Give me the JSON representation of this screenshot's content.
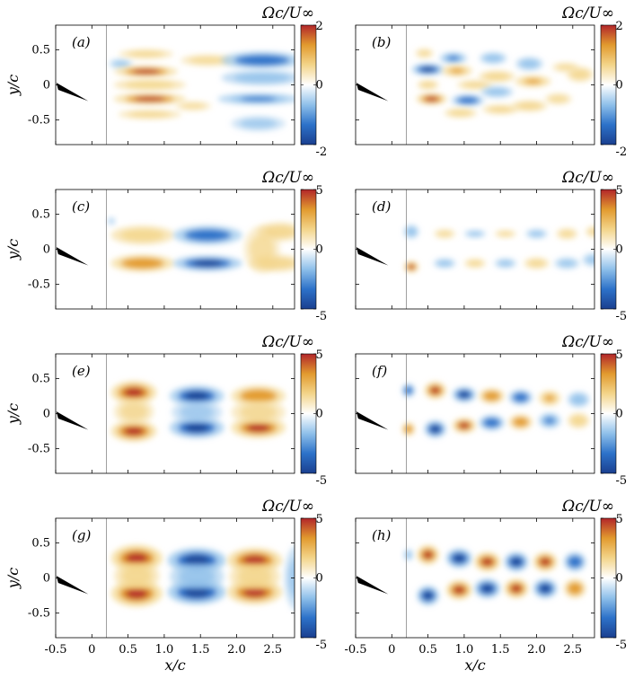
{
  "figure": {
    "x_axis_label": "x/c",
    "y_axis_label": "y/c",
    "colorbar_title": "Ωc/U∞",
    "colormap": [
      "#1a3f8f",
      "#2d72c9",
      "#8fc0ea",
      "#ffffff",
      "#f3d58a",
      "#e29a2e",
      "#b2262a"
    ]
  },
  "chart_data": [
    {
      "type": "heatmap",
      "panel": "(a)",
      "xlim": [
        -0.5,
        2.8
      ],
      "ylim": [
        -0.85,
        0.85
      ],
      "xticks": [
        "-0.5",
        "0",
        "0.5",
        "1.0",
        "1.5",
        "2.0",
        "2.5"
      ],
      "yticks": [
        "0.5",
        "0",
        "-0.5"
      ],
      "colorbar": {
        "min": -2,
        "max": 2,
        "ticks": [
          "2",
          "0",
          "-2"
        ]
      },
      "vortices": [
        {
          "x": 0.4,
          "y": 0.3,
          "a": 0.13,
          "b": 0.05,
          "v": -0.6
        },
        {
          "x": 0.75,
          "y": 0.44,
          "a": 0.3,
          "b": 0.05,
          "v": 0.9
        },
        {
          "x": 0.75,
          "y": 0.19,
          "a": 0.35,
          "b": 0.06,
          "v": 1.6
        },
        {
          "x": 0.8,
          "y": 0.0,
          "a": 0.4,
          "b": 0.06,
          "v": 1.1
        },
        {
          "x": 0.8,
          "y": -0.2,
          "a": 0.4,
          "b": 0.06,
          "v": 1.6
        },
        {
          "x": 0.8,
          "y": -0.42,
          "a": 0.35,
          "b": 0.05,
          "v": 0.9
        },
        {
          "x": 1.6,
          "y": 0.35,
          "a": 0.3,
          "b": 0.06,
          "v": 0.7
        },
        {
          "x": 2.35,
          "y": 0.35,
          "a": 0.45,
          "b": 0.09,
          "v": -1.5
        },
        {
          "x": 2.35,
          "y": 0.1,
          "a": 0.45,
          "b": 0.08,
          "v": -1.0
        },
        {
          "x": 2.3,
          "y": -0.2,
          "a": 0.45,
          "b": 0.06,
          "v": -1.3
        },
        {
          "x": 2.3,
          "y": -0.55,
          "a": 0.3,
          "b": 0.08,
          "v": -0.3
        },
        {
          "x": 1.4,
          "y": -0.3,
          "a": 0.2,
          "b": 0.05,
          "v": 0.4
        }
      ]
    },
    {
      "type": "heatmap",
      "panel": "(b)",
      "xlim": [
        -0.5,
        2.8
      ],
      "ylim": [
        -0.85,
        0.85
      ],
      "xticks": [
        "-0.5",
        "0",
        "0.5",
        "1.0",
        "1.5",
        "2.0",
        "2.5"
      ],
      "yticks": [
        "0.5",
        "0",
        "-0.5"
      ],
      "colorbar": {
        "min": -2,
        "max": 2,
        "ticks": [
          "2",
          "0",
          "-2"
        ]
      },
      "vortices": [
        {
          "x": 0.45,
          "y": 0.45,
          "a": 0.1,
          "b": 0.05,
          "v": 0.7
        },
        {
          "x": 0.85,
          "y": 0.38,
          "a": 0.15,
          "b": 0.06,
          "v": -1.3
        },
        {
          "x": 0.5,
          "y": 0.22,
          "a": 0.18,
          "b": 0.06,
          "v": -1.7
        },
        {
          "x": 0.9,
          "y": 0.2,
          "a": 0.17,
          "b": 0.06,
          "v": 1.3
        },
        {
          "x": 0.5,
          "y": 0.0,
          "a": 0.12,
          "b": 0.05,
          "v": 1.0
        },
        {
          "x": 1.15,
          "y": 0.0,
          "a": 0.2,
          "b": 0.05,
          "v": 0.9
        },
        {
          "x": 0.55,
          "y": -0.2,
          "a": 0.17,
          "b": 0.06,
          "v": 1.6
        },
        {
          "x": 1.05,
          "y": -0.22,
          "a": 0.18,
          "b": 0.06,
          "v": -1.4
        },
        {
          "x": 1.4,
          "y": 0.38,
          "a": 0.15,
          "b": 0.06,
          "v": -1.1
        },
        {
          "x": 1.45,
          "y": 0.12,
          "a": 0.2,
          "b": 0.06,
          "v": 1.2
        },
        {
          "x": 1.45,
          "y": -0.1,
          "a": 0.18,
          "b": 0.06,
          "v": -1.0
        },
        {
          "x": 1.5,
          "y": -0.35,
          "a": 0.2,
          "b": 0.05,
          "v": 1.0
        },
        {
          "x": 0.95,
          "y": -0.4,
          "a": 0.18,
          "b": 0.05,
          "v": 1.1
        },
        {
          "x": 1.9,
          "y": 0.3,
          "a": 0.15,
          "b": 0.07,
          "v": -1.0
        },
        {
          "x": 1.95,
          "y": 0.05,
          "a": 0.2,
          "b": 0.06,
          "v": 1.3
        },
        {
          "x": 1.9,
          "y": -0.3,
          "a": 0.2,
          "b": 0.06,
          "v": 1.0
        },
        {
          "x": 2.4,
          "y": 0.25,
          "a": 0.15,
          "b": 0.05,
          "v": 0.6
        },
        {
          "x": 2.6,
          "y": 0.15,
          "a": 0.15,
          "b": 0.08,
          "v": 0.9
        },
        {
          "x": 2.3,
          "y": -0.2,
          "a": 0.15,
          "b": 0.06,
          "v": 0.6
        }
      ]
    },
    {
      "type": "heatmap",
      "panel": "(c)",
      "xlim": [
        -0.5,
        2.8
      ],
      "ylim": [
        -0.85,
        0.85
      ],
      "xticks": [
        "-0.5",
        "0",
        "0.5",
        "1.0",
        "1.5",
        "2.0",
        "2.5"
      ],
      "yticks": [
        "0.5",
        "0",
        "-0.5"
      ],
      "colorbar": {
        "min": -5,
        "max": 5,
        "ticks": [
          "5",
          "0",
          "-5"
        ]
      },
      "vortices": [
        {
          "x": 0.7,
          "y": 0.2,
          "a": 0.35,
          "b": 0.1,
          "v": 2.8
        },
        {
          "x": 0.7,
          "y": -0.2,
          "a": 0.35,
          "b": 0.09,
          "v": 3.8
        },
        {
          "x": 1.6,
          "y": 0.2,
          "a": 0.38,
          "b": 0.1,
          "v": -3.8
        },
        {
          "x": 1.6,
          "y": -0.2,
          "a": 0.38,
          "b": 0.08,
          "v": -4.5
        },
        {
          "x": 2.6,
          "y": 0.25,
          "a": 0.25,
          "b": 0.1,
          "v": 2.5
        },
        {
          "x": 2.55,
          "y": -0.2,
          "a": 0.3,
          "b": 0.09,
          "v": 2.5
        },
        {
          "x": 2.35,
          "y": 0.0,
          "a": 0.2,
          "b": 0.25,
          "v": 0.6
        },
        {
          "x": 0.27,
          "y": 0.4,
          "a": 0.04,
          "b": 0.04,
          "v": -1.0
        }
      ]
    },
    {
      "type": "heatmap",
      "panel": "(d)",
      "xlim": [
        -0.5,
        2.8
      ],
      "ylim": [
        -0.85,
        0.85
      ],
      "xticks": [
        "-0.5",
        "0",
        "0.5",
        "1.0",
        "1.5",
        "2.0",
        "2.5"
      ],
      "yticks": [
        "0.5",
        "0",
        "-0.5"
      ],
      "colorbar": {
        "min": -5,
        "max": 5,
        "ticks": [
          "5",
          "0",
          "-5"
        ]
      },
      "vortices": [
        {
          "x": 0.27,
          "y": 0.25,
          "a": 0.08,
          "b": 0.07,
          "v": -3.0
        },
        {
          "x": 0.27,
          "y": -0.25,
          "a": 0.08,
          "b": 0.06,
          "v": 4.0
        },
        {
          "x": 0.73,
          "y": 0.22,
          "a": 0.12,
          "b": 0.05,
          "v": 1.5
        },
        {
          "x": 0.73,
          "y": -0.2,
          "a": 0.12,
          "b": 0.05,
          "v": -2.5
        },
        {
          "x": 1.15,
          "y": 0.22,
          "a": 0.12,
          "b": 0.04,
          "v": -1.8
        },
        {
          "x": 1.15,
          "y": -0.2,
          "a": 0.12,
          "b": 0.05,
          "v": 2.0
        },
        {
          "x": 1.57,
          "y": 0.22,
          "a": 0.12,
          "b": 0.04,
          "v": 1.8
        },
        {
          "x": 1.57,
          "y": -0.2,
          "a": 0.12,
          "b": 0.05,
          "v": -2.0
        },
        {
          "x": 2.0,
          "y": 0.22,
          "a": 0.12,
          "b": 0.05,
          "v": -1.8
        },
        {
          "x": 2.0,
          "y": -0.2,
          "a": 0.14,
          "b": 0.06,
          "v": 2.2
        },
        {
          "x": 2.42,
          "y": 0.22,
          "a": 0.12,
          "b": 0.06,
          "v": 1.8
        },
        {
          "x": 2.42,
          "y": -0.2,
          "a": 0.14,
          "b": 0.06,
          "v": -1.5
        },
        {
          "x": 2.8,
          "y": 0.25,
          "a": 0.1,
          "b": 0.06,
          "v": 1.6
        },
        {
          "x": 2.78,
          "y": -0.15,
          "a": 0.12,
          "b": 0.07,
          "v": -1.2
        }
      ]
    },
    {
      "type": "heatmap",
      "panel": "(e)",
      "xlim": [
        -0.5,
        2.8
      ],
      "ylim": [
        -0.85,
        0.85
      ],
      "xticks": [
        "-0.5",
        "0",
        "0.5",
        "1.0",
        "1.5",
        "2.0",
        "2.5"
      ],
      "yticks": [
        "0.5",
        "0",
        "-0.5"
      ],
      "colorbar": {
        "min": -5,
        "max": 5,
        "ticks": [
          "5",
          "0",
          "-5"
        ]
      },
      "vortices": [
        {
          "x": 0.58,
          "y": 0.3,
          "a": 0.25,
          "b": 0.12,
          "v": 4.8
        },
        {
          "x": 0.58,
          "y": -0.25,
          "a": 0.25,
          "b": 0.11,
          "v": 4.8
        },
        {
          "x": 0.58,
          "y": 0.03,
          "a": 0.22,
          "b": 0.14,
          "v": 1.6
        },
        {
          "x": 1.45,
          "y": 0.25,
          "a": 0.3,
          "b": 0.11,
          "v": -4.2
        },
        {
          "x": 1.45,
          "y": -0.2,
          "a": 0.3,
          "b": 0.11,
          "v": -4.5
        },
        {
          "x": 1.45,
          "y": 0.02,
          "a": 0.28,
          "b": 0.12,
          "v": -1.0
        },
        {
          "x": 2.3,
          "y": 0.25,
          "a": 0.3,
          "b": 0.11,
          "v": 3.8
        },
        {
          "x": 2.3,
          "y": -0.2,
          "a": 0.3,
          "b": 0.11,
          "v": 4.2
        },
        {
          "x": 2.3,
          "y": 0.02,
          "a": 0.3,
          "b": 0.13,
          "v": 1.6
        }
      ]
    },
    {
      "type": "heatmap",
      "panel": "(f)",
      "xlim": [
        -0.5,
        2.8
      ],
      "ylim": [
        -0.85,
        0.85
      ],
      "xticks": [
        "-0.5",
        "0",
        "0.5",
        "1.0",
        "1.5",
        "2.0",
        "2.5"
      ],
      "yticks": [
        "0.5",
        "0",
        "-0.5"
      ],
      "colorbar": {
        "min": -5,
        "max": 5,
        "ticks": [
          "5",
          "0",
          "-5"
        ]
      },
      "vortices": [
        {
          "x": 0.23,
          "y": 0.33,
          "a": 0.07,
          "b": 0.07,
          "v": -3.6
        },
        {
          "x": 0.23,
          "y": -0.22,
          "a": 0.07,
          "b": 0.07,
          "v": 3.6
        },
        {
          "x": 0.6,
          "y": 0.33,
          "a": 0.12,
          "b": 0.09,
          "v": 4.2
        },
        {
          "x": 0.6,
          "y": -0.22,
          "a": 0.12,
          "b": 0.09,
          "v": -4.2
        },
        {
          "x": 1.0,
          "y": 0.27,
          "a": 0.13,
          "b": 0.08,
          "v": -4.0
        },
        {
          "x": 1.0,
          "y": -0.17,
          "a": 0.13,
          "b": 0.08,
          "v": 4.0
        },
        {
          "x": 1.38,
          "y": 0.25,
          "a": 0.14,
          "b": 0.08,
          "v": 3.6
        },
        {
          "x": 1.38,
          "y": -0.13,
          "a": 0.14,
          "b": 0.08,
          "v": -3.6
        },
        {
          "x": 1.78,
          "y": 0.23,
          "a": 0.13,
          "b": 0.08,
          "v": -3.4
        },
        {
          "x": 1.78,
          "y": -0.12,
          "a": 0.13,
          "b": 0.08,
          "v": 3.4
        },
        {
          "x": 2.18,
          "y": 0.22,
          "a": 0.12,
          "b": 0.08,
          "v": 3.2
        },
        {
          "x": 2.18,
          "y": -0.1,
          "a": 0.12,
          "b": 0.08,
          "v": -3.2
        },
        {
          "x": 2.58,
          "y": 0.2,
          "a": 0.12,
          "b": 0.08,
          "v": -3.0
        },
        {
          "x": 2.58,
          "y": -0.1,
          "a": 0.12,
          "b": 0.08,
          "v": 3.0
        }
      ]
    },
    {
      "type": "heatmap",
      "panel": "(g)",
      "xlim": [
        -0.5,
        2.8
      ],
      "ylim": [
        -0.85,
        0.85
      ],
      "xticks": [
        "-0.5",
        "0",
        "0.5",
        "1.0",
        "1.5",
        "2.0",
        "2.5"
      ],
      "yticks": [
        "0.5",
        "0",
        "-0.5"
      ],
      "colorbar": {
        "min": -5,
        "max": 5,
        "ticks": [
          "5",
          "0",
          "-5"
        ]
      },
      "vortices": [
        {
          "x": 0.62,
          "y": 0.28,
          "a": 0.28,
          "b": 0.14,
          "v": 5.2
        },
        {
          "x": 0.62,
          "y": -0.22,
          "a": 0.28,
          "b": 0.14,
          "v": 5.2
        },
        {
          "x": 0.62,
          "y": 0.03,
          "a": 0.25,
          "b": 0.15,
          "v": 2.2
        },
        {
          "x": 1.45,
          "y": 0.25,
          "a": 0.32,
          "b": 0.13,
          "v": -5.2
        },
        {
          "x": 1.45,
          "y": -0.2,
          "a": 0.32,
          "b": 0.13,
          "v": -5.2
        },
        {
          "x": 1.45,
          "y": 0.02,
          "a": 0.3,
          "b": 0.15,
          "v": -2.0
        },
        {
          "x": 2.25,
          "y": 0.25,
          "a": 0.3,
          "b": 0.13,
          "v": 4.8
        },
        {
          "x": 2.25,
          "y": -0.2,
          "a": 0.3,
          "b": 0.13,
          "v": 4.8
        },
        {
          "x": 2.25,
          "y": 0.02,
          "a": 0.28,
          "b": 0.15,
          "v": 2.2
        },
        {
          "x": 2.85,
          "y": 0.0,
          "a": 0.15,
          "b": 0.35,
          "v": -1.8
        }
      ]
    },
    {
      "type": "heatmap",
      "panel": "(h)",
      "xlim": [
        -0.5,
        2.8
      ],
      "ylim": [
        -0.85,
        0.85
      ],
      "xticks": [
        "-0.5",
        "0",
        "0.5",
        "1.0",
        "1.5",
        "2.0",
        "2.5"
      ],
      "yticks": [
        "0.5",
        "0",
        "-0.5"
      ],
      "colorbar": {
        "min": -5,
        "max": 5,
        "ticks": [
          "5",
          "0",
          "-5"
        ]
      },
      "vortices": [
        {
          "x": 0.23,
          "y": 0.33,
          "a": 0.05,
          "b": 0.06,
          "v": -2.4
        },
        {
          "x": 0.5,
          "y": 0.33,
          "a": 0.12,
          "b": 0.1,
          "v": 5.0
        },
        {
          "x": 0.5,
          "y": -0.25,
          "a": 0.12,
          "b": 0.1,
          "v": -5.0
        },
        {
          "x": 0.93,
          "y": 0.28,
          "a": 0.14,
          "b": 0.1,
          "v": -5.0
        },
        {
          "x": 0.93,
          "y": -0.17,
          "a": 0.14,
          "b": 0.1,
          "v": 5.0
        },
        {
          "x": 1.32,
          "y": 0.23,
          "a": 0.14,
          "b": 0.1,
          "v": 5.0
        },
        {
          "x": 1.32,
          "y": -0.15,
          "a": 0.14,
          "b": 0.1,
          "v": -5.0
        },
        {
          "x": 1.72,
          "y": 0.23,
          "a": 0.13,
          "b": 0.1,
          "v": -5.0
        },
        {
          "x": 1.72,
          "y": -0.15,
          "a": 0.13,
          "b": 0.1,
          "v": 5.0
        },
        {
          "x": 2.12,
          "y": 0.23,
          "a": 0.13,
          "b": 0.1,
          "v": 4.6
        },
        {
          "x": 2.12,
          "y": -0.15,
          "a": 0.13,
          "b": 0.1,
          "v": -4.6
        },
        {
          "x": 2.53,
          "y": 0.23,
          "a": 0.12,
          "b": 0.1,
          "v": -3.8
        },
        {
          "x": 2.53,
          "y": -0.15,
          "a": 0.12,
          "b": 0.1,
          "v": 3.8
        }
      ]
    }
  ]
}
